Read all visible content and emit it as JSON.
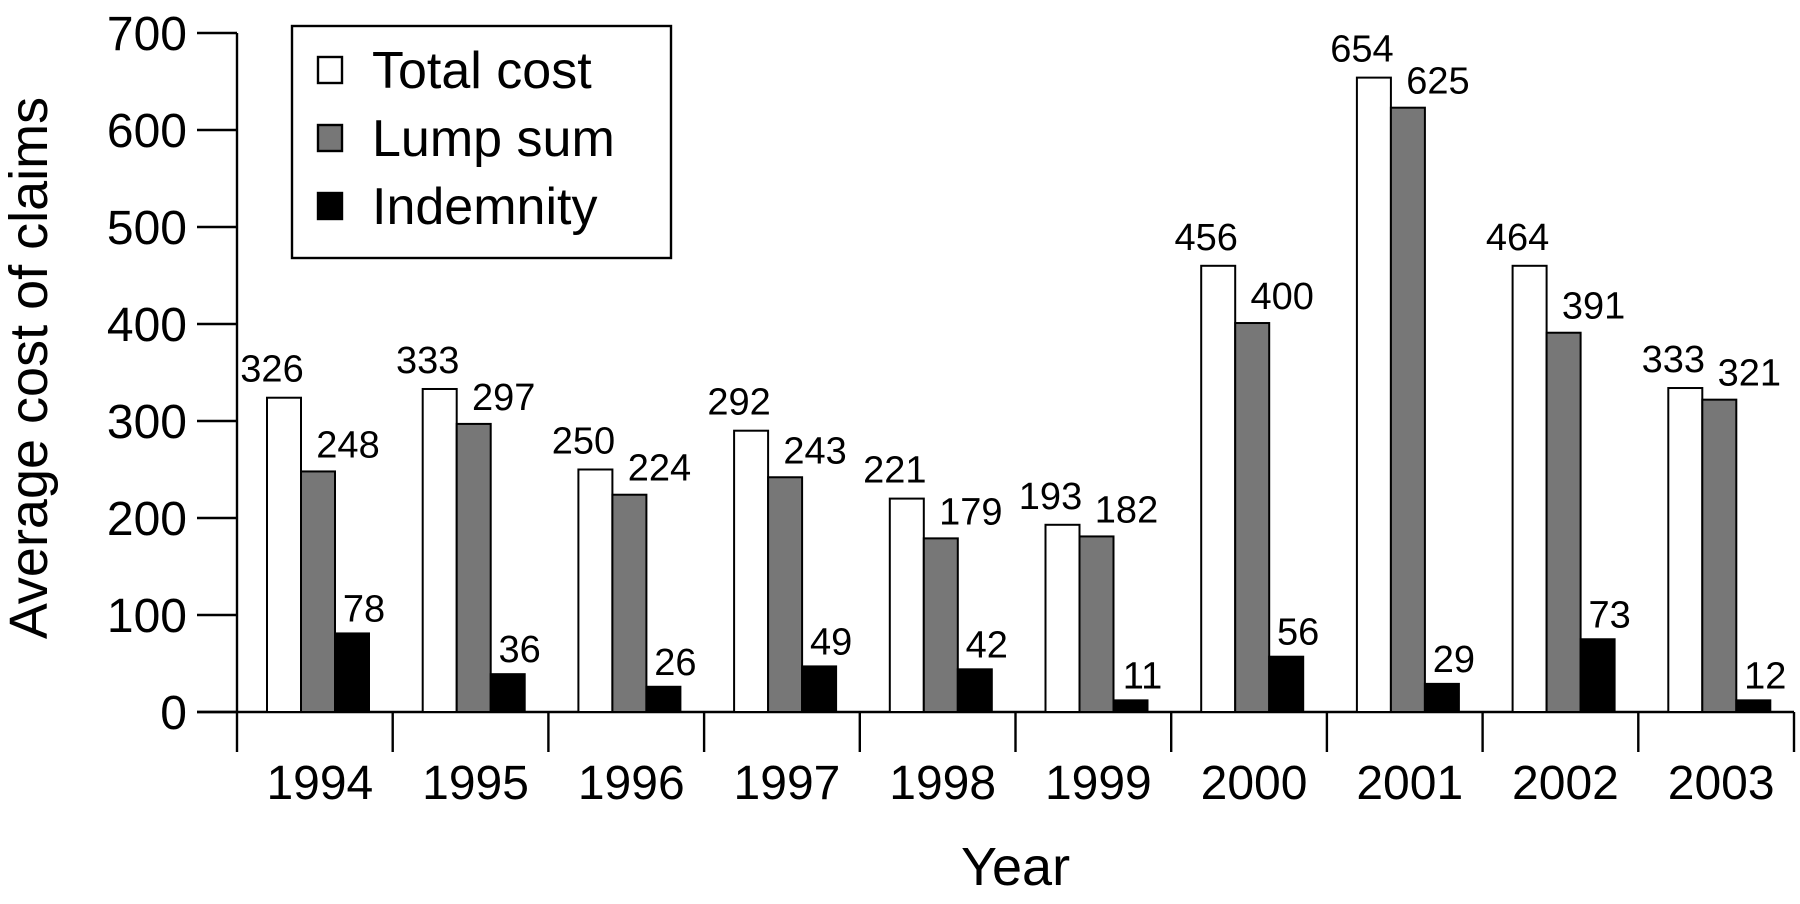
{
  "chart_data": {
    "type": "bar",
    "title": "",
    "xlabel": "Year",
    "ylabel": "Average cost of claims",
    "ylim": [
      0,
      700
    ],
    "yticks": [
      0,
      100,
      200,
      300,
      400,
      500,
      600,
      700
    ],
    "grid": false,
    "legend_position": "top-left",
    "categories": [
      "1994",
      "1995",
      "1996",
      "1997",
      "1998",
      "1999",
      "2000",
      "2001",
      "2002",
      "2003"
    ],
    "series": [
      {
        "name": "Total cost",
        "color": "#ffffff",
        "values": [
          326,
          333,
          250,
          292,
          221,
          193,
          456,
          654,
          464,
          333
        ],
        "heights": [
          324,
          333,
          250,
          290,
          220,
          193,
          460,
          654,
          460,
          334
        ]
      },
      {
        "name": "Lump sum",
        "color": "#777777",
        "values": [
          248,
          297,
          224,
          243,
          179,
          182,
          400,
          625,
          391,
          321
        ],
        "heights": [
          248,
          297,
          224,
          242,
          179,
          181,
          401,
          623,
          391,
          322
        ]
      },
      {
        "name": "Indemnity",
        "color": "#000000",
        "values": [
          78,
          36,
          26,
          49,
          42,
          11,
          56,
          29,
          73,
          12
        ],
        "heights": [
          81,
          39,
          26,
          47,
          44,
          12,
          57,
          29,
          75,
          12
        ]
      }
    ]
  }
}
